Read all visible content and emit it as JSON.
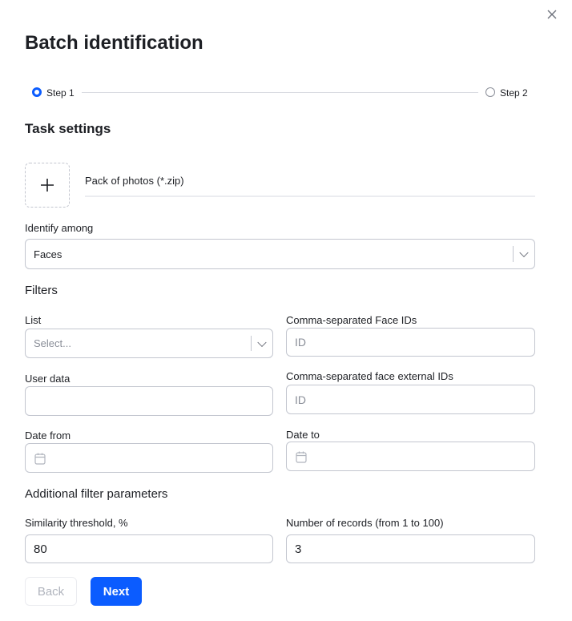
{
  "dialog": {
    "title": "Batch identification",
    "close_icon": "close-icon"
  },
  "stepper": {
    "steps": [
      {
        "label": "Step 1",
        "active": true
      },
      {
        "label": "Step 2",
        "active": false
      }
    ],
    "accent": "#0b5cff"
  },
  "task_settings": {
    "heading": "Task settings",
    "upload_label": "Pack of photos (*.zip)"
  },
  "identify_among": {
    "label": "Identify among",
    "value": "Faces"
  },
  "filters": {
    "heading": "Filters",
    "list": {
      "label": "List",
      "placeholder": "Select..."
    },
    "face_ids": {
      "label": "Comma-separated Face IDs",
      "placeholder": "ID"
    },
    "user_data": {
      "label": "User data",
      "value": ""
    },
    "external_ids": {
      "label": "Comma-separated face external IDs",
      "placeholder": "ID"
    },
    "date_from": {
      "label": "Date from"
    },
    "date_to": {
      "label": "Date to"
    }
  },
  "additional": {
    "heading": "Additional filter parameters",
    "similarity": {
      "label": "Similarity threshold, %",
      "value": "80"
    },
    "records": {
      "label": "Number of records (from 1 to 100)",
      "value": "3"
    }
  },
  "buttons": {
    "back": "Back",
    "next": "Next"
  }
}
